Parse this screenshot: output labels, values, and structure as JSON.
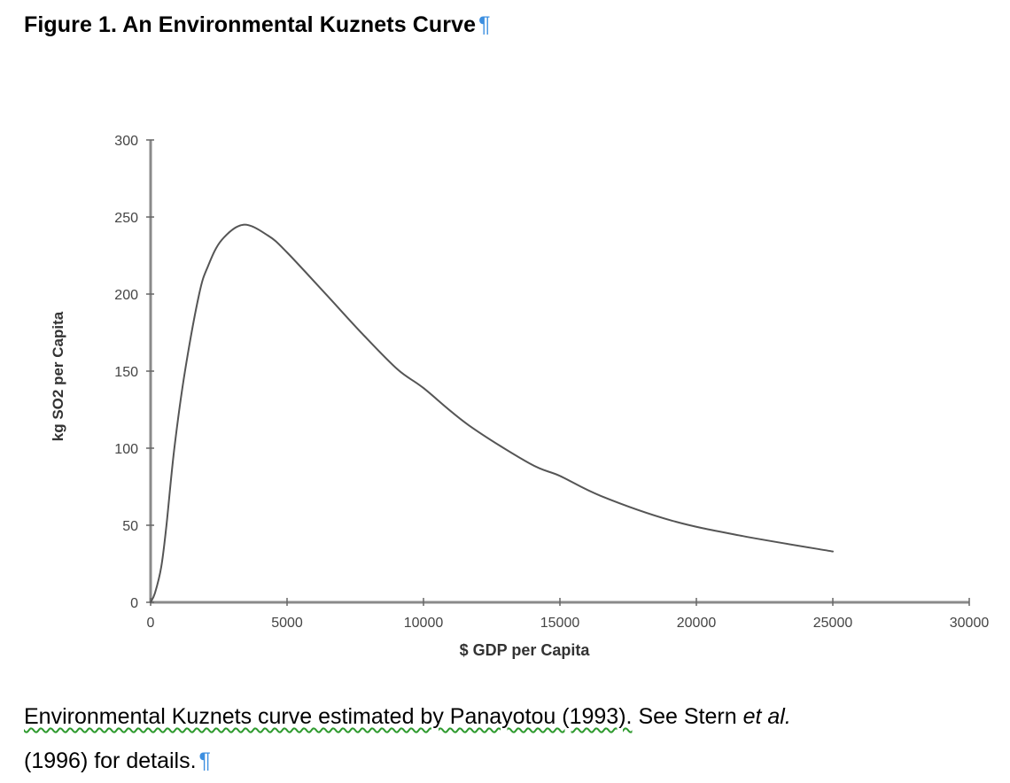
{
  "document": {
    "figure_title": "Figure 1. An Environmental Kuznets Curve",
    "pilcrow": "¶",
    "caption": {
      "flagged_text": "Environmental Kuznets curve estimated by Panayotou (1993).",
      "plain_text": " See Stern ",
      "italic_text": "et al.",
      "line2_text": "(1996) for details."
    },
    "colors": {
      "pilcrow": "#3d8fe0",
      "grammar_squiggle": "#2e9a2e",
      "axis": "#8a8a8a",
      "curve": "#555555",
      "tick_label": "#444444"
    }
  },
  "chart_data": {
    "type": "line",
    "title": "Figure 1. An Environmental Kuznets Curve",
    "xlabel": "$ GDP per Capita",
    "ylabel": "kg SO2 per Capita",
    "xlim": [
      0,
      30000
    ],
    "ylim": [
      0,
      300
    ],
    "x_ticks": [
      0,
      5000,
      10000,
      15000,
      20000,
      25000,
      30000
    ],
    "y_ticks": [
      0,
      50,
      100,
      150,
      200,
      250,
      300
    ],
    "x_tick_labels": [
      "0",
      "5000",
      "10000",
      "15000",
      "20000",
      "25000",
      "30000"
    ],
    "y_tick_labels": [
      "0",
      "50",
      "100",
      "150",
      "200",
      "250",
      "300"
    ],
    "grid": false,
    "legend": null,
    "series": [
      {
        "name": "Environmental Kuznets Curve (Panayotou 1993)",
        "x": [
          0,
          160,
          390,
          580,
          870,
          1260,
          1780,
          2100,
          2600,
          3400,
          4300,
          5000,
          6470,
          7770,
          9060,
          10000,
          11650,
          13900,
          15000,
          16500,
          19100,
          21700,
          25000
        ],
        "y": [
          0,
          6,
          23,
          50,
          100,
          150,
          200,
          218,
          235,
          245,
          238,
          227,
          199,
          174,
          151,
          139,
          115,
          90,
          82,
          69,
          53,
          43,
          33
        ]
      }
    ],
    "annotations": {
      "peak": {
        "x": 3400,
        "y": 245
      }
    }
  }
}
